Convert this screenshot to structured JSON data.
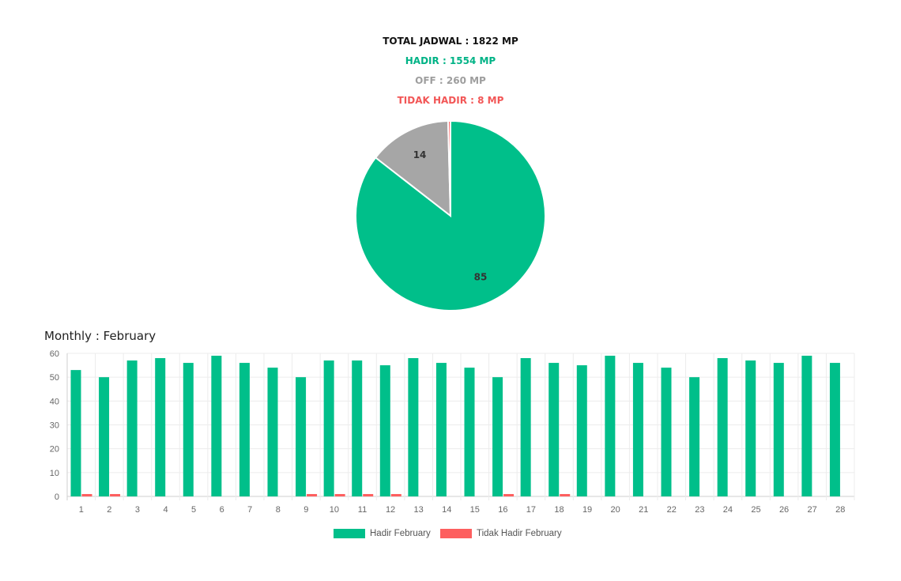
{
  "summary": {
    "total": "TOTAL JADWAL : 1822 MP",
    "hadir": "HADIR : 1554 MP",
    "off": "OFF : 260 MP",
    "tidak_hadir": "TIDAK HADIR : 8 MP"
  },
  "colors": {
    "hadir": "#00bf8a",
    "off": "#a6a6a6",
    "tidak_hadir": "#fd5f5f"
  },
  "chart_data": [
    {
      "type": "pie",
      "slices": [
        {
          "label": "Hadir",
          "value": 85,
          "color": "#00bf8a"
        },
        {
          "label": "Off",
          "value": 14,
          "color": "#a6a6a6"
        },
        {
          "label": "Tidak Hadir",
          "value": 0.4,
          "color": "#fd5f5f"
        }
      ],
      "data_labels": [
        "85",
        "14"
      ]
    },
    {
      "type": "bar",
      "title": "Monthly : February",
      "categories": [
        "1",
        "2",
        "3",
        "4",
        "5",
        "6",
        "7",
        "8",
        "9",
        "10",
        "11",
        "12",
        "13",
        "14",
        "15",
        "16",
        "17",
        "18",
        "19",
        "20",
        "21",
        "22",
        "23",
        "24",
        "25",
        "26",
        "27",
        "28"
      ],
      "series": [
        {
          "name": "Hadir February",
          "color": "#00bf8a",
          "values": [
            53,
            50,
            57,
            58,
            56,
            59,
            56,
            54,
            50,
            57,
            57,
            55,
            58,
            56,
            54,
            50,
            58,
            56,
            55,
            59,
            56,
            54,
            50,
            58,
            57,
            56,
            59,
            56
          ]
        },
        {
          "name": "Tidak Hadir February",
          "color": "#fd5f5f",
          "values": [
            1,
            1,
            0,
            0,
            0,
            0,
            0,
            0,
            1,
            1,
            1,
            1,
            0,
            0,
            0,
            1,
            0,
            1,
            0,
            0,
            0,
            0,
            0,
            0,
            0,
            0,
            0,
            0
          ]
        }
      ],
      "ylim": [
        0,
        60
      ],
      "yticks": [
        0,
        10,
        20,
        30,
        40,
        50,
        60
      ],
      "grid": true,
      "legend_position": "bottom"
    }
  ]
}
